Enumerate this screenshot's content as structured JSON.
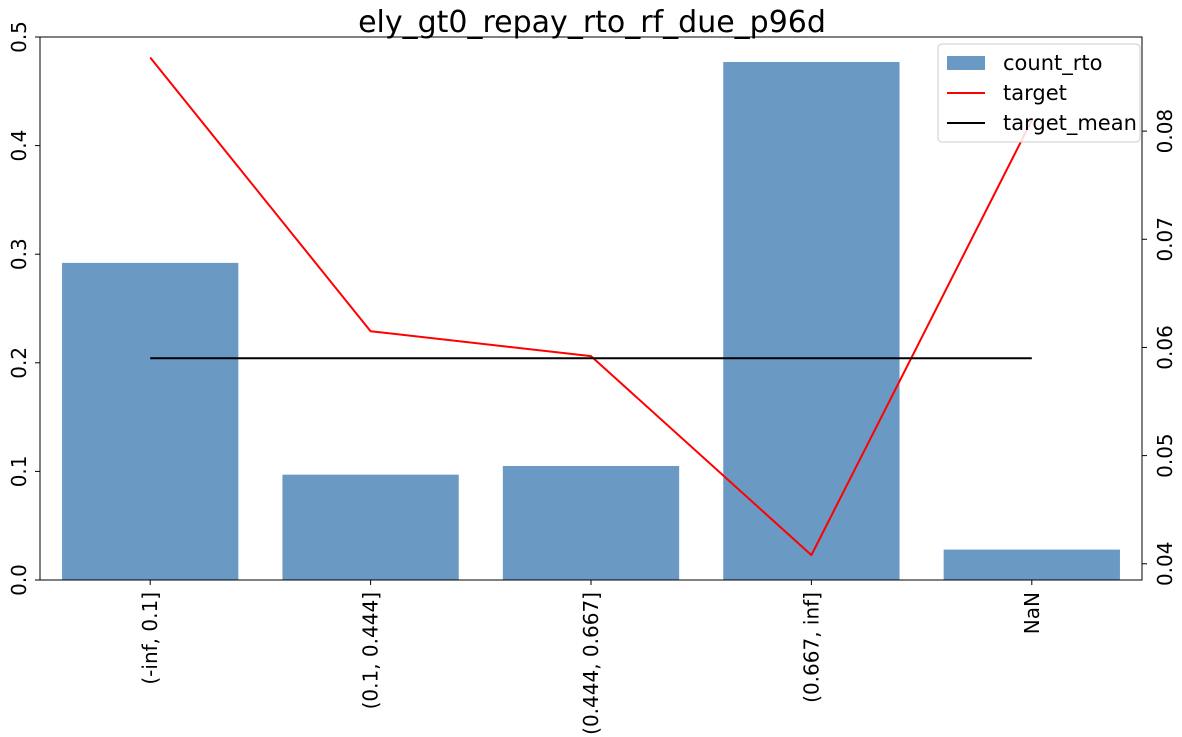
{
  "chart_data": {
    "type": "bar",
    "title": "ely_gt0_repay_rto_rf_due_p96d",
    "xlabel": "",
    "categories": [
      "(-inf, 0.1]",
      "(0.1, 0.444]",
      "(0.444, 0.667]",
      "(0.667, inf]",
      "NaN"
    ],
    "left_axis": {
      "ylim": [
        0,
        0.5
      ],
      "ticks": [
        0.0,
        0.1,
        0.2,
        0.3,
        0.4,
        0.5
      ],
      "tick_labels": [
        "0.0",
        "0.1",
        "0.2",
        "0.3",
        "0.4",
        "0.5"
      ]
    },
    "right_axis": {
      "ylim": [
        0.0385,
        0.0887
      ],
      "ticks": [
        0.04,
        0.05,
        0.06,
        0.07,
        0.08
      ],
      "tick_labels": [
        "0.04",
        "0.05",
        "0.06",
        "0.07",
        "0.08"
      ]
    },
    "series": [
      {
        "name": "count_rto",
        "kind": "bar",
        "axis": "left",
        "color": "#6a9ac4",
        "values": [
          0.292,
          0.097,
          0.105,
          0.477,
          0.028
        ]
      },
      {
        "name": "target",
        "kind": "line",
        "axis": "right",
        "color": "#ff0000",
        "values": [
          0.0868,
          0.0615,
          0.0592,
          0.0408,
          0.081
        ]
      },
      {
        "name": "target_mean",
        "kind": "line",
        "axis": "right",
        "color": "#000000",
        "values": [
          0.059,
          0.059,
          0.059,
          0.059,
          0.059
        ]
      }
    ],
    "legend": {
      "position": "top-right",
      "entries": [
        {
          "label": "count_rto",
          "type": "patch",
          "color": "#6a9ac4"
        },
        {
          "label": "target",
          "type": "line",
          "color": "#ff0000"
        },
        {
          "label": "target_mean",
          "type": "line",
          "color": "#000000"
        }
      ]
    },
    "grid": false
  }
}
